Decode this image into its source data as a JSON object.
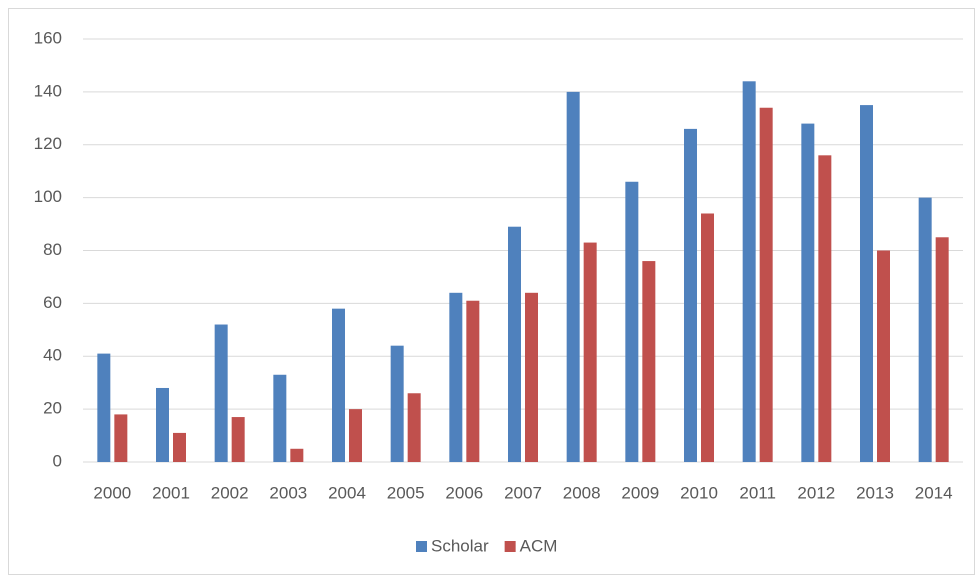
{
  "chart_data": {
    "type": "bar",
    "categories": [
      "2000",
      "2001",
      "2002",
      "2003",
      "2004",
      "2005",
      "2006",
      "2007",
      "2008",
      "2009",
      "2010",
      "2011",
      "2012",
      "2013",
      "2014"
    ],
    "series": [
      {
        "name": "Scholar",
        "color": "#4f81bd",
        "values": [
          41,
          28,
          52,
          33,
          58,
          44,
          64,
          89,
          140,
          106,
          126,
          144,
          128,
          135,
          100
        ]
      },
      {
        "name": "ACM",
        "color": "#c0504d",
        "values": [
          18,
          11,
          17,
          5,
          20,
          26,
          61,
          64,
          83,
          76,
          94,
          134,
          116,
          80,
          85
        ]
      }
    ],
    "ylim": [
      0,
      160
    ],
    "yticks": [
      0,
      20,
      40,
      60,
      80,
      100,
      120,
      140,
      160
    ],
    "grid": true,
    "legend": "bottom"
  }
}
